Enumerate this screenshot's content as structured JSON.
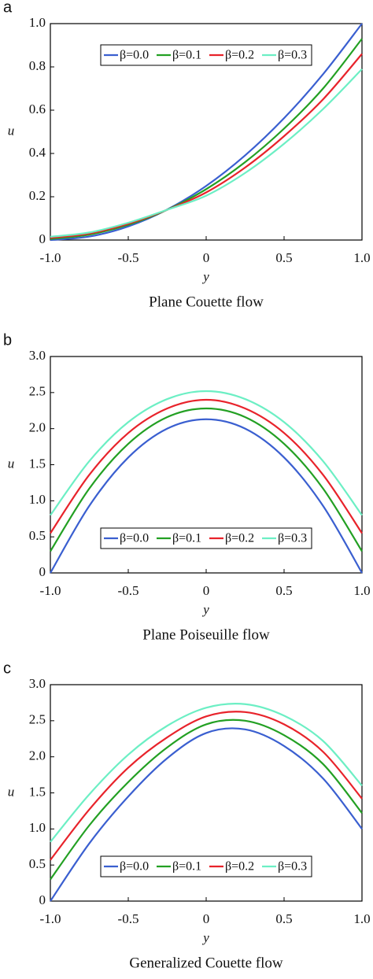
{
  "chart_data": [
    {
      "type": "line",
      "panel": "a",
      "title": "Plane Couette flow",
      "xlabel": "y",
      "ylabel": "u",
      "legend": "upper center",
      "x": [
        -1,
        -0.75,
        -0.5,
        -0.25,
        0,
        0.25,
        0.5,
        0.75,
        1
      ],
      "xlim": [
        -1,
        1
      ],
      "xticks": [
        {
          "value": -1,
          "label": "-1.0"
        },
        -0.5,
        0,
        0.5,
        {
          "value": 1,
          "label": "1.0"
        }
      ],
      "ylim": [
        0,
        1
      ],
      "yticks": [
        0,
        0.2,
        0.4,
        0.6,
        0.8,
        {
          "value": 1,
          "label": "1.0"
        }
      ],
      "series": [
        {
          "name": "β=0.0",
          "color": "#3a5fd0",
          "values": [
            0,
            0.016,
            0.063,
            0.141,
            0.25,
            0.391,
            0.563,
            0.766,
            1.0
          ]
        },
        {
          "name": "β=0.1",
          "color": "#23a023",
          "values": [
            0.005,
            0.025,
            0.07,
            0.14,
            0.235,
            0.36,
            0.515,
            0.7,
            0.93
          ]
        },
        {
          "name": "β=0.2",
          "color": "#e8232b",
          "values": [
            0.01,
            0.03,
            0.075,
            0.14,
            0.22,
            0.335,
            0.48,
            0.65,
            0.86
          ]
        },
        {
          "name": "β=0.3",
          "color": "#6cefc4",
          "values": [
            0.015,
            0.035,
            0.08,
            0.14,
            0.205,
            0.31,
            0.445,
            0.605,
            0.79
          ]
        }
      ]
    },
    {
      "type": "line",
      "panel": "b",
      "title": "Plane Poiseuille flow",
      "xlabel": "y",
      "ylabel": "u",
      "legend": "lower center",
      "x": [
        -1,
        -0.75,
        -0.5,
        -0.25,
        0,
        0.25,
        0.5,
        0.75,
        1
      ],
      "xlim": [
        -1,
        1
      ],
      "xticks": [
        {
          "value": -1,
          "label": "-1.0"
        },
        -0.5,
        0,
        0.5,
        {
          "value": 1,
          "label": "1.0"
        }
      ],
      "ylim": [
        0,
        3
      ],
      "yticks": [
        0,
        0.5,
        {
          "value": 1,
          "label": "1.0"
        },
        1.5,
        {
          "value": 2,
          "label": "2.0"
        },
        2.5,
        {
          "value": 3,
          "label": "3.0"
        }
      ],
      "series": [
        {
          "name": "β=0.0",
          "color": "#3a5fd0",
          "values": [
            0,
            0.93,
            1.6,
            2.0,
            2.13,
            2.0,
            1.6,
            0.93,
            0
          ]
        },
        {
          "name": "β=0.1",
          "color": "#23a023",
          "values": [
            0.3,
            1.17,
            1.79,
            2.16,
            2.28,
            2.16,
            1.79,
            1.17,
            0.3
          ]
        },
        {
          "name": "β=0.2",
          "color": "#e8232b",
          "values": [
            0.55,
            1.36,
            1.94,
            2.28,
            2.4,
            2.28,
            1.94,
            1.36,
            0.55
          ]
        },
        {
          "name": "β=0.3",
          "color": "#6cefc4",
          "values": [
            0.8,
            1.55,
            2.09,
            2.41,
            2.52,
            2.41,
            2.09,
            1.55,
            0.8
          ]
        }
      ]
    },
    {
      "type": "line",
      "panel": "c",
      "title": "Generalized Couette flow",
      "xlabel": "y",
      "ylabel": "u",
      "legend": "lower center",
      "x": [
        -1,
        -0.75,
        -0.5,
        -0.25,
        0,
        0.25,
        0.5,
        0.75,
        1
      ],
      "xlim": [
        -1,
        1
      ],
      "xticks": [
        {
          "value": -1,
          "label": "-1.0"
        },
        -0.5,
        0,
        0.5,
        {
          "value": 1,
          "label": "1.0"
        }
      ],
      "ylim": [
        0,
        3
      ],
      "yticks": [
        0,
        0.5,
        {
          "value": 1,
          "label": "1.0"
        },
        1.5,
        {
          "value": 2,
          "label": "2.0"
        },
        2.5,
        {
          "value": 3,
          "label": "3.0"
        }
      ],
      "series": [
        {
          "name": "β=0.0",
          "color": "#3a5fd0",
          "values": [
            0,
            0.8,
            1.45,
            1.98,
            2.33,
            2.38,
            2.15,
            1.7,
            1.0
          ]
        },
        {
          "name": "β=0.1",
          "color": "#23a023",
          "values": [
            0.3,
            1.05,
            1.65,
            2.13,
            2.45,
            2.5,
            2.3,
            1.9,
            1.22
          ]
        },
        {
          "name": "β=0.2",
          "color": "#e8232b",
          "values": [
            0.57,
            1.27,
            1.85,
            2.27,
            2.56,
            2.62,
            2.45,
            2.07,
            1.42
          ]
        },
        {
          "name": "β=0.3",
          "color": "#6cefc4",
          "values": [
            0.82,
            1.48,
            2.03,
            2.43,
            2.68,
            2.73,
            2.57,
            2.22,
            1.6
          ]
        }
      ]
    }
  ]
}
